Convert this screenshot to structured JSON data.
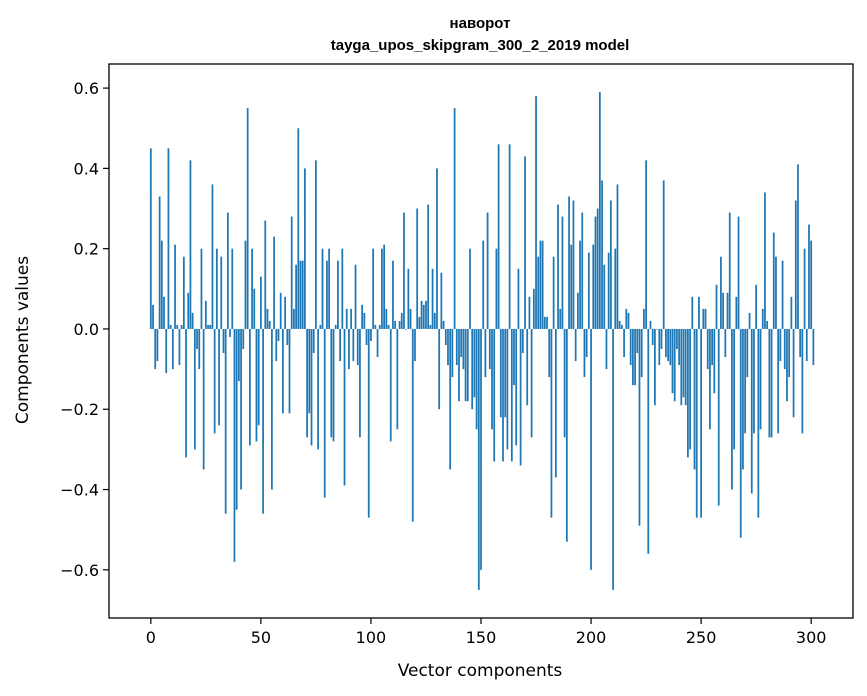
{
  "chart_data": {
    "type": "bar",
    "title": "наворот",
    "subtitle": "tayga_upos_skipgram_300_2_2019 model",
    "xlabel": "Vector components",
    "ylabel": "Components values",
    "xlim": [
      -19,
      319
    ],
    "ylim": [
      -0.72,
      0.66
    ],
    "xticks": [
      0,
      50,
      100,
      150,
      200,
      250,
      300
    ],
    "yticks": [
      -0.6,
      -0.4,
      -0.2,
      0.0,
      0.2,
      0.4,
      0.6
    ],
    "xtick_labels": [
      "0",
      "50",
      "100",
      "150",
      "200",
      "250",
      "300"
    ],
    "ytick_labels": [
      "−0.6",
      "−0.4",
      "−0.2",
      "0.0",
      "0.2",
      "0.4",
      "0.6"
    ],
    "bar_color": "#1f77b4",
    "grid": false,
    "values": [
      0.45,
      0.06,
      -0.1,
      -0.08,
      0.33,
      0.22,
      0.08,
      -0.11,
      0.45,
      0.01,
      -0.1,
      0.21,
      0.01,
      -0.09,
      0.01,
      0.18,
      -0.32,
      0.09,
      0.42,
      0.04,
      -0.3,
      -0.05,
      -0.1,
      0.2,
      -0.35,
      0.07,
      0.01,
      0.01,
      0.36,
      -0.26,
      0.2,
      -0.24,
      0.18,
      -0.06,
      -0.46,
      0.29,
      -0.02,
      0.2,
      -0.58,
      -0.45,
      -0.13,
      -0.4,
      -0.05,
      0.22,
      0.55,
      -0.29,
      0.2,
      0.1,
      -0.28,
      -0.24,
      0.13,
      -0.46,
      0.27,
      0.05,
      0.02,
      -0.4,
      0.23,
      -0.08,
      -0.03,
      0.09,
      -0.21,
      0.08,
      -0.04,
      -0.21,
      0.28,
      0.05,
      0.16,
      0.5,
      0.17,
      0.17,
      0.4,
      -0.27,
      -0.21,
      -0.29,
      -0.06,
      0.42,
      -0.3,
      0.01,
      0.2,
      -0.42,
      0.17,
      0.2,
      -0.27,
      -0.28,
      0.01,
      0.17,
      -0.08,
      0.2,
      -0.39,
      0.05,
      -0.1,
      0.05,
      -0.08,
      0.16,
      -0.09,
      -0.27,
      0.06,
      0.04,
      -0.04,
      -0.47,
      -0.03,
      0.2,
      0.01,
      -0.07,
      0.01,
      0.2,
      0.21,
      0.05,
      0.01,
      -0.28,
      0.17,
      0.02,
      -0.25,
      0.02,
      0.04,
      0.29,
      0.0,
      0.15,
      0.05,
      -0.48,
      -0.08,
      0.3,
      0.03,
      0.07,
      0.06,
      0.07,
      0.31,
      0.01,
      0.15,
      0.04,
      0.4,
      -0.2,
      0.14,
      0.02,
      -0.04,
      -0.09,
      -0.35,
      -0.12,
      0.55,
      -0.09,
      -0.18,
      -0.07,
      -0.1,
      -0.18,
      -0.18,
      0.2,
      -0.2,
      -0.17,
      -0.25,
      -0.65,
      -0.6,
      0.22,
      -0.12,
      0.29,
      -0.1,
      -0.25,
      -0.33,
      0.2,
      0.46,
      -0.22,
      -0.33,
      -0.22,
      -0.3,
      0.46,
      -0.33,
      -0.14,
      -0.29,
      0.15,
      -0.34,
      -0.06,
      0.43,
      -0.19,
      0.08,
      -0.27,
      0.1,
      0.58,
      0.18,
      0.22,
      0.22,
      0.03,
      0.03,
      -0.12,
      -0.47,
      0.18,
      -0.37,
      0.31,
      0.05,
      0.28,
      -0.27,
      -0.53,
      0.33,
      0.21,
      0.32,
      -0.08,
      0.09,
      0.22,
      0.29,
      -0.12,
      -0.07,
      0.19,
      -0.6,
      0.21,
      0.28,
      0.3,
      0.59,
      0.37,
      0.16,
      -0.1,
      0.19,
      0.32,
      -0.65,
      0.2,
      0.36,
      0.02,
      0.01,
      -0.07,
      0.05,
      0.04,
      -0.09,
      -0.14,
      -0.14,
      -0.06,
      -0.49,
      -0.12,
      0.05,
      0.42,
      -0.56,
      0.02,
      -0.04,
      -0.19,
      0.0,
      -0.09,
      -0.05,
      0.37,
      -0.07,
      -0.08,
      -0.09,
      -0.16,
      -0.18,
      -0.05,
      -0.09,
      -0.19,
      -0.17,
      -0.19,
      -0.32,
      -0.3,
      0.08,
      -0.35,
      -0.47,
      0.08,
      -0.47,
      0.05,
      0.05,
      -0.1,
      -0.25,
      -0.09,
      -0.16,
      0.11,
      -0.44,
      0.18,
      0.09,
      -0.07,
      0.09,
      0.29,
      -0.4,
      -0.3,
      0.08,
      0.28,
      -0.52,
      -0.35,
      -0.26,
      -0.12,
      0.04,
      -0.41,
      -0.26,
      0.11,
      -0.47,
      -0.25,
      0.05,
      0.34,
      0.02,
      -0.27,
      -0.27,
      0.24,
      0.18,
      -0.26,
      -0.08,
      0.17,
      -0.1,
      -0.18,
      -0.12,
      0.08,
      -0.22,
      0.32,
      0.41,
      -0.07,
      -0.26,
      0.2,
      -0.08,
      0.26,
      0.22,
      -0.09
    ]
  }
}
